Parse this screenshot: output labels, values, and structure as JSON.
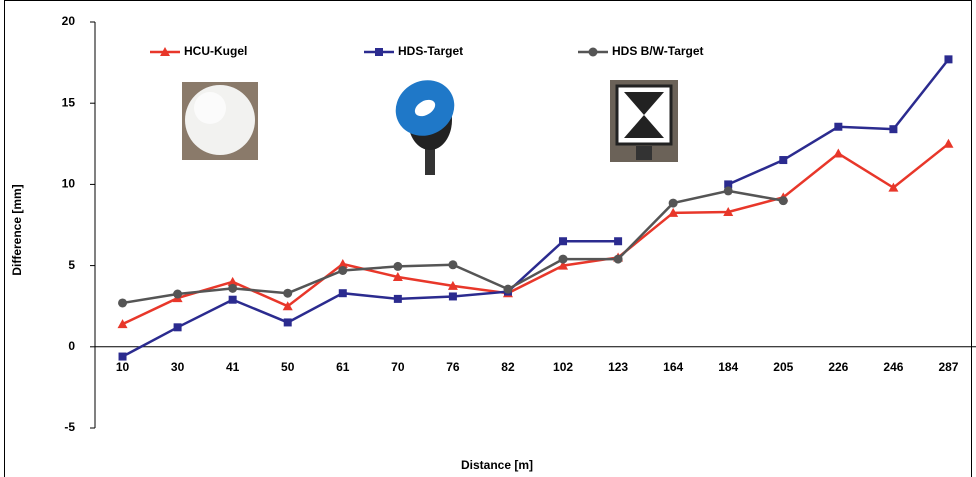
{
  "chart_data": {
    "type": "line",
    "x_label": "Distance [m]",
    "y_label": "Difference [mm]",
    "categories": [
      "10",
      "30",
      "41",
      "50",
      "61",
      "70",
      "76",
      "82",
      "102",
      "123",
      "164",
      "184",
      "205",
      "226",
      "246",
      "287"
    ],
    "series": [
      {
        "name": "HCU-Kugel",
        "color": "#e8372a",
        "marker": "triangle",
        "values": [
          1.4,
          3.0,
          4.0,
          2.5,
          5.1,
          4.3,
          3.75,
          3.3,
          5.0,
          5.5,
          8.25,
          8.3,
          9.2,
          11.9,
          9.8,
          12.5
        ]
      },
      {
        "name": "HDS-Target",
        "color": "#2b2b8f",
        "marker": "square",
        "values": [
          -0.6,
          1.2,
          2.9,
          1.5,
          3.3,
          2.95,
          3.1,
          3.4,
          6.5,
          6.5,
          null,
          10.0,
          11.5,
          13.55,
          13.4,
          17.7
        ]
      },
      {
        "name": "HDS B/W-Target",
        "color": "#555555",
        "marker": "circle",
        "values": [
          2.7,
          3.25,
          3.6,
          3.3,
          4.7,
          4.95,
          5.05,
          3.55,
          5.4,
          5.4,
          8.85,
          9.6,
          9.0,
          null,
          null,
          null
        ]
      }
    ],
    "ylim": [
      -5,
      20
    ],
    "yticks": [
      -5,
      0,
      5,
      10,
      15,
      20
    ],
    "grid": false,
    "legend": "top"
  }
}
